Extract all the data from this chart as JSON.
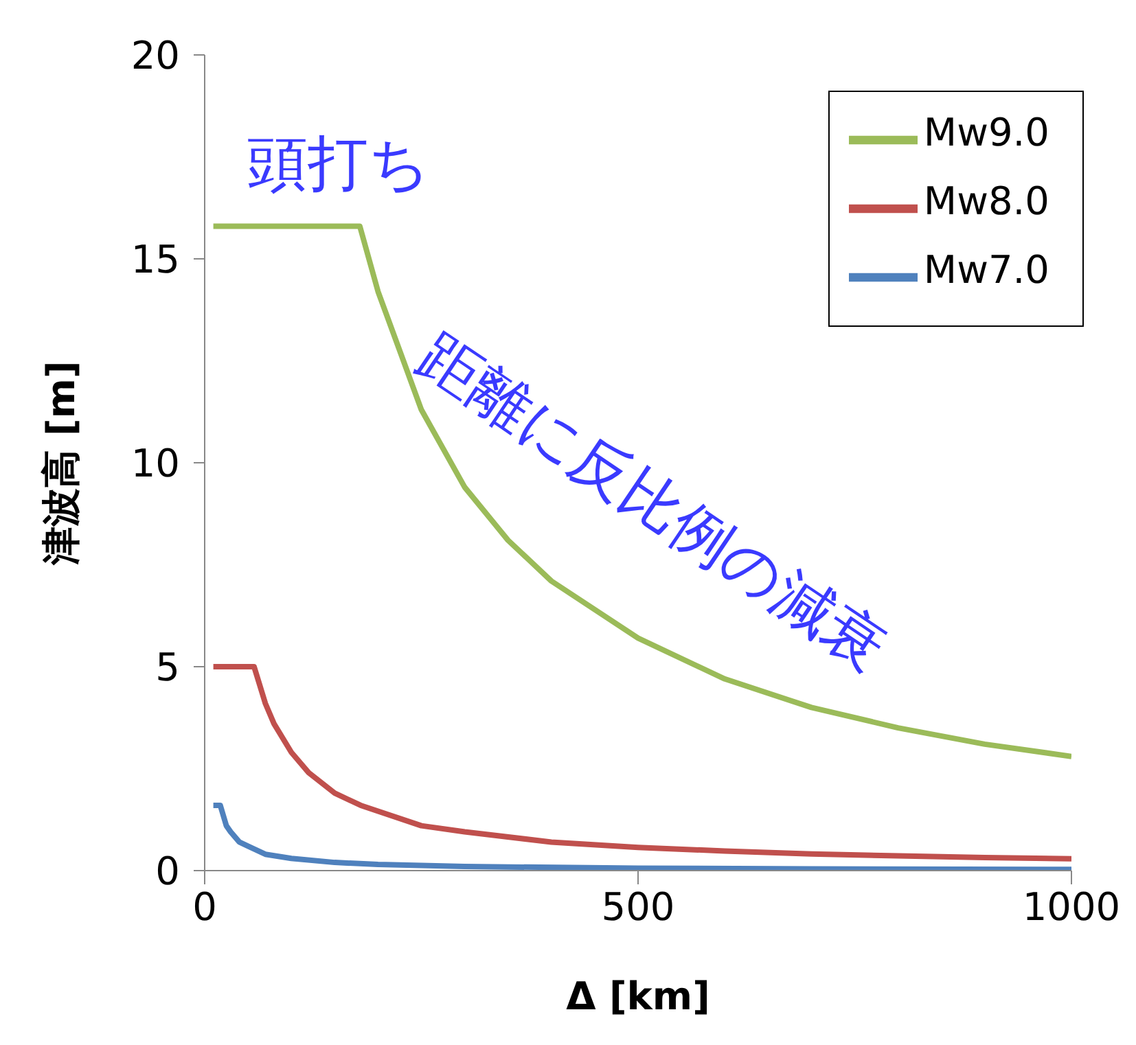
{
  "chart_data": {
    "type": "line",
    "xlabel": "Δ [km]",
    "ylabel": "津波高 [m]",
    "xlim": [
      0,
      1000
    ],
    "xticks": [
      0,
      500,
      1000
    ],
    "ylim": [
      0,
      20
    ],
    "yticks": [
      0,
      5,
      10,
      15,
      20
    ],
    "grid": false,
    "legend": "top right",
    "marker": "none",
    "line_style": "solid",
    "annotations": [
      "頭打ち",
      "距離に反比例の減衰"
    ],
    "series": [
      {
        "name": "Mw9.0",
        "color": "#9bbb59",
        "x": [
          10,
          179,
          200,
          250,
          300,
          350,
          400,
          500,
          600,
          700,
          800,
          900,
          1000
        ],
        "values": [
          15.8,
          15.8,
          14.2,
          11.3,
          9.4,
          8.1,
          7.1,
          5.7,
          4.7,
          4.0,
          3.5,
          3.1,
          2.8
        ]
      },
      {
        "name": "Mw8.0",
        "color": "#c0504d",
        "x": [
          10,
          57,
          70,
          80,
          100,
          120,
          150,
          180,
          250,
          300,
          400,
          500,
          600,
          700,
          800,
          900,
          1000
        ],
        "values": [
          5,
          5,
          4.1,
          3.6,
          2.9,
          2.4,
          1.9,
          1.6,
          1.1,
          0.95,
          0.7,
          0.57,
          0.48,
          0.41,
          0.36,
          0.32,
          0.29
        ]
      },
      {
        "name": "Mw7.0",
        "color": "#4f81bd",
        "x": [
          10,
          18,
          25,
          30,
          40,
          50,
          70,
          100,
          150,
          200,
          300,
          500,
          700,
          1000
        ],
        "values": [
          1.6,
          1.6,
          1.1,
          0.95,
          0.7,
          0.6,
          0.4,
          0.3,
          0.2,
          0.15,
          0.1,
          0.06,
          0.04,
          0.03
        ]
      }
    ]
  }
}
